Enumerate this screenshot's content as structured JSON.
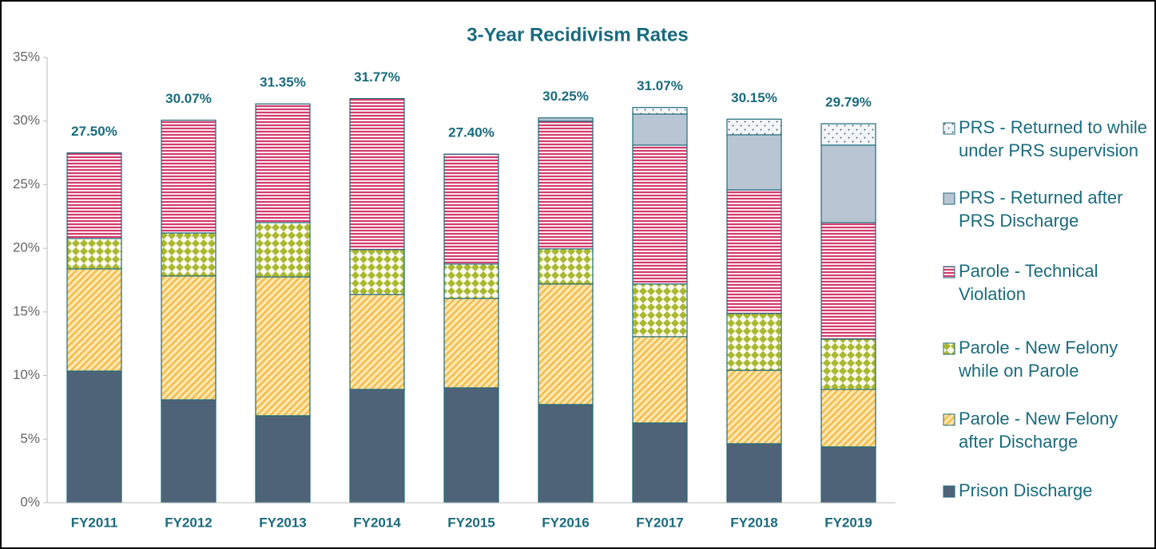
{
  "chart_data": {
    "type": "stacked_bar",
    "title": "3-Year Recidivism Rates",
    "categories": [
      "FY2011",
      "FY2012",
      "FY2013",
      "FY2014",
      "FY2015",
      "FY2016",
      "FY2017",
      "FY2018",
      "FY2019"
    ],
    "series": [
      {
        "name": "Prison Discharge",
        "color": "#4f6378",
        "pattern": "solid",
        "values": [
          10.35,
          8.09,
          6.84,
          8.91,
          9.03,
          7.72,
          6.27,
          4.64,
          4.39
        ]
      },
      {
        "name": "Parole - New Felony after Discharge",
        "color": "#f2bc4e",
        "pattern": "diagonal",
        "values": [
          8.03,
          9.73,
          10.91,
          7.46,
          7.03,
          9.47,
          6.78,
          5.77,
          4.52
        ]
      },
      {
        "name": "Parole - New Felony while on Parole",
        "color": "#a9b82e",
        "pattern": "diamond",
        "values": [
          2.39,
          3.38,
          4.27,
          3.52,
          2.7,
          2.76,
          4.14,
          4.46,
          3.95
        ]
      },
      {
        "name": "Parole - Technical Violation",
        "color": "#d23c6c",
        "pattern": "horizontal",
        "values": [
          6.73,
          8.87,
          9.33,
          11.88,
          8.64,
          10.04,
          10.92,
          9.72,
          9.16
        ]
      },
      {
        "name": "PRS - Returned after PRS Discharge",
        "color": "#b8c6d4",
        "pattern": "solid",
        "values": [
          0,
          0,
          0,
          0,
          0,
          0.26,
          2.44,
          4.33,
          6.09
        ]
      },
      {
        "name": "PRS - Returned to while under PRS supervision",
        "color": "#4f6378",
        "pattern": "dots",
        "values": [
          0,
          0,
          0,
          0,
          0,
          0,
          0.52,
          1.23,
          1.68
        ]
      }
    ],
    "totals": [
      27.5,
      30.07,
      31.35,
      31.77,
      27.4,
      30.25,
      31.07,
      30.15,
      29.79
    ],
    "total_labels": [
      "27.50%",
      "30.07%",
      "31.35%",
      "31.77%",
      "27.40%",
      "30.25%",
      "31.07%",
      "30.15%",
      "29.79%"
    ],
    "ylim": [
      0,
      35
    ],
    "yticks": [
      {
        "value": 0,
        "label": "0%"
      },
      {
        "value": 5,
        "label": "5%"
      },
      {
        "value": 10,
        "label": "10%"
      },
      {
        "value": 15,
        "label": "15%"
      },
      {
        "value": 20,
        "label": "20%"
      },
      {
        "value": 25,
        "label": "25%"
      },
      {
        "value": 30,
        "label": "30%"
      },
      {
        "value": 35,
        "label": "35%"
      }
    ],
    "legend": "right"
  }
}
